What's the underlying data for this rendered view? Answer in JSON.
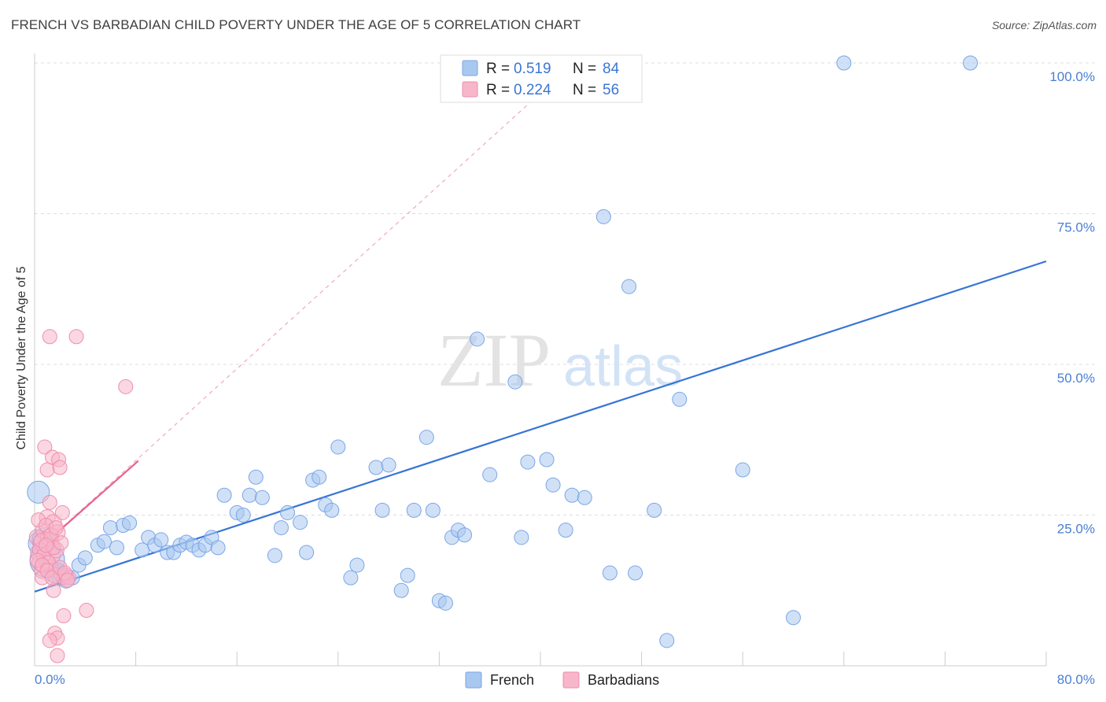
{
  "header": {
    "title": "FRENCH VS BARBADIAN CHILD POVERTY UNDER THE AGE OF 5 CORRELATION CHART",
    "source": "Source: ZipAtlas.com"
  },
  "watermark": {
    "zip": "ZIP",
    "atlas": "atlas"
  },
  "colors": {
    "french_fill": "#a9c8f0",
    "french_stroke": "#7aa6e6",
    "french_line": "#3674d6",
    "barb_fill": "#f7b6ca",
    "barb_stroke": "#ee8fae",
    "barb_line": "#e8608e",
    "grid": "#dddddd",
    "axis_label": "#4a7fd4"
  },
  "legend": {
    "rows": [
      {
        "r_label": "R =",
        "r_value": "0.519",
        "n_label": "N =",
        "n_value": "84"
      },
      {
        "r_label": "R =",
        "r_value": "0.224",
        "n_label": "N =",
        "n_value": "56"
      }
    ]
  },
  "bottom_legend": [
    "French",
    "Barbadians"
  ],
  "chart_data": {
    "type": "scatter",
    "title": "FRENCH VS BARBADIAN CHILD POVERTY UNDER THE AGE OF 5 CORRELATION CHART",
    "ylabel": "Child Poverty Under the Age of 5",
    "xlabel": "",
    "xlim": [
      0,
      80
    ],
    "ylim": [
      0,
      100
    ],
    "x_tick_labels": [
      "0.0%",
      "80.0%"
    ],
    "y_ticks": [
      25,
      50,
      75,
      100
    ],
    "y_tick_labels": [
      "25.0%",
      "50.0%",
      "75.0%",
      "100.0%"
    ],
    "grid": "horizontal dashed",
    "legend_placement": "top-center",
    "series": [
      {
        "name": "French",
        "R": 0.519,
        "N": 84,
        "trend": {
          "x": [
            0,
            80
          ],
          "y": [
            12.3,
            67.1
          ],
          "style": "solid"
        },
        "points": [
          [
            0.3,
            28.8,
            14
          ],
          [
            0.5,
            20.3,
            16
          ],
          [
            0.8,
            20.8,
            16
          ],
          [
            1.0,
            17.5,
            22
          ],
          [
            1.2,
            20.0,
            12
          ],
          [
            1.5,
            15.4,
            12
          ],
          [
            1.8,
            15.8,
            10
          ],
          [
            2.0,
            14.6,
            10
          ],
          [
            2.2,
            15.0,
            10
          ],
          [
            2.5,
            14.2,
            10
          ],
          [
            3.0,
            14.6,
            9
          ],
          [
            3.5,
            16.7,
            9
          ],
          [
            4.0,
            17.9,
            9
          ],
          [
            5.0,
            20.0,
            9
          ],
          [
            5.5,
            20.6,
            9
          ],
          [
            6.0,
            22.9,
            9
          ],
          [
            6.5,
            19.6,
            9
          ],
          [
            7.0,
            23.3,
            9
          ],
          [
            7.5,
            23.7,
            9
          ],
          [
            8.5,
            19.2,
            9
          ],
          [
            9.0,
            21.3,
            9
          ],
          [
            9.5,
            20.0,
            9
          ],
          [
            10.0,
            20.9,
            9
          ],
          [
            10.5,
            18.8,
            9
          ],
          [
            11.0,
            18.8,
            9
          ],
          [
            11.5,
            20.0,
            9
          ],
          [
            12.0,
            20.5,
            9
          ],
          [
            12.5,
            20.0,
            9
          ],
          [
            13.0,
            19.2,
            9
          ],
          [
            13.5,
            20.0,
            9
          ],
          [
            14.0,
            21.3,
            9
          ],
          [
            14.5,
            19.6,
            9
          ],
          [
            15.0,
            28.3,
            9
          ],
          [
            16.0,
            25.4,
            9
          ],
          [
            16.5,
            25.0,
            9
          ],
          [
            17.0,
            28.3,
            9
          ],
          [
            17.5,
            31.3,
            9
          ],
          [
            18.0,
            27.9,
            9
          ],
          [
            19.0,
            18.3,
            9
          ],
          [
            19.5,
            22.9,
            9
          ],
          [
            20.0,
            25.4,
            9
          ],
          [
            21.0,
            23.8,
            9
          ],
          [
            21.5,
            18.8,
            9
          ],
          [
            22.0,
            30.8,
            9
          ],
          [
            22.5,
            31.3,
            9
          ],
          [
            23.0,
            26.7,
            9
          ],
          [
            23.5,
            25.8,
            9
          ],
          [
            24.0,
            36.3,
            9
          ],
          [
            25.0,
            14.6,
            9
          ],
          [
            25.5,
            16.7,
            9
          ],
          [
            27.0,
            32.9,
            9
          ],
          [
            27.5,
            25.8,
            9
          ],
          [
            28.0,
            33.3,
            9
          ],
          [
            29.0,
            12.5,
            9
          ],
          [
            29.5,
            15.0,
            9
          ],
          [
            30.0,
            25.8,
            9
          ],
          [
            31.0,
            37.9,
            9
          ],
          [
            31.5,
            25.8,
            9
          ],
          [
            32.0,
            10.8,
            9
          ],
          [
            32.5,
            10.4,
            9
          ],
          [
            33.0,
            21.3,
            9
          ],
          [
            33.5,
            22.5,
            9
          ],
          [
            34.0,
            21.7,
            9
          ],
          [
            35.0,
            54.2,
            9
          ],
          [
            36.0,
            31.7,
            9
          ],
          [
            38.0,
            47.1,
            9
          ],
          [
            38.5,
            21.3,
            9
          ],
          [
            39.0,
            33.8,
            9
          ],
          [
            40.5,
            34.2,
            9
          ],
          [
            41.0,
            30.0,
            9
          ],
          [
            42.0,
            22.5,
            9
          ],
          [
            42.5,
            28.3,
            9
          ],
          [
            43.5,
            27.9,
            9
          ],
          [
            45.0,
            74.5,
            9
          ],
          [
            45.5,
            15.4,
            9
          ],
          [
            47.0,
            62.9,
            9
          ],
          [
            47.5,
            15.4,
            9
          ],
          [
            49.0,
            25.8,
            9
          ],
          [
            50.0,
            4.2,
            9
          ],
          [
            51.0,
            44.2,
            9
          ],
          [
            56.0,
            32.5,
            9
          ],
          [
            60.0,
            8.0,
            9
          ],
          [
            64.0,
            100.0,
            9
          ],
          [
            74.0,
            100.0,
            9
          ]
        ]
      },
      {
        "name": "Barbadians",
        "R": 0.224,
        "N": 56,
        "trend": {
          "x": [
            0,
            8.2
          ],
          "y": [
            18.8,
            34.0
          ],
          "style": "solid+dashed",
          "extended": {
            "x": [
              0,
              40
            ],
            "y": [
              18.8,
              95.0
            ]
          }
        },
        "points": [
          [
            0.2,
            21.3,
            10
          ],
          [
            0.3,
            18.8,
            10
          ],
          [
            0.4,
            17.1,
            10
          ],
          [
            0.5,
            20.4,
            10
          ],
          [
            0.6,
            15.8,
            10
          ],
          [
            0.7,
            22.5,
            10
          ],
          [
            0.8,
            19.6,
            10
          ],
          [
            0.9,
            17.5,
            10
          ],
          [
            1.0,
            24.6,
            10
          ],
          [
            1.1,
            21.3,
            10
          ],
          [
            1.2,
            16.3,
            10
          ],
          [
            1.3,
            20.8,
            10
          ],
          [
            1.4,
            18.3,
            10
          ],
          [
            1.5,
            23.8,
            10
          ],
          [
            1.6,
            15.0,
            10
          ],
          [
            1.7,
            19.2,
            10
          ],
          [
            1.8,
            22.1,
            10
          ],
          [
            0.3,
            24.2,
            9
          ],
          [
            0.6,
            14.6,
            9
          ],
          [
            0.8,
            36.3,
            9
          ],
          [
            1.0,
            32.5,
            9
          ],
          [
            1.2,
            27.1,
            9
          ],
          [
            1.4,
            34.6,
            9
          ],
          [
            1.5,
            12.5,
            9
          ],
          [
            1.9,
            34.2,
            9
          ],
          [
            2.0,
            32.9,
            9
          ],
          [
            2.2,
            25.4,
            9
          ],
          [
            2.3,
            14.6,
            9
          ],
          [
            2.5,
            15.0,
            9
          ],
          [
            2.7,
            14.6,
            9
          ],
          [
            1.2,
            54.6,
            9
          ],
          [
            3.3,
            54.6,
            9
          ],
          [
            7.2,
            46.3,
            9
          ],
          [
            4.1,
            9.2,
            9
          ],
          [
            2.3,
            8.3,
            9
          ],
          [
            1.6,
            5.4,
            9
          ],
          [
            1.8,
            4.6,
            9
          ],
          [
            1.2,
            4.2,
            9
          ],
          [
            1.8,
            1.7,
            9
          ],
          [
            0.4,
            19.2,
            9
          ],
          [
            0.5,
            20.8,
            9
          ],
          [
            0.7,
            18.3,
            9
          ],
          [
            0.9,
            23.3,
            9
          ],
          [
            1.1,
            17.1,
            9
          ],
          [
            1.3,
            21.7,
            9
          ],
          [
            1.5,
            19.6,
            9
          ],
          [
            0.2,
            17.5,
            9
          ],
          [
            0.6,
            16.7,
            9
          ],
          [
            1.0,
            15.8,
            9
          ],
          [
            1.4,
            14.6,
            9
          ],
          [
            2.0,
            16.3,
            9
          ],
          [
            2.1,
            20.4,
            9
          ],
          [
            2.4,
            15.4,
            9
          ],
          [
            2.6,
            14.2,
            9
          ],
          [
            0.9,
            20.0,
            9
          ],
          [
            1.7,
            22.9,
            9
          ]
        ]
      }
    ]
  }
}
